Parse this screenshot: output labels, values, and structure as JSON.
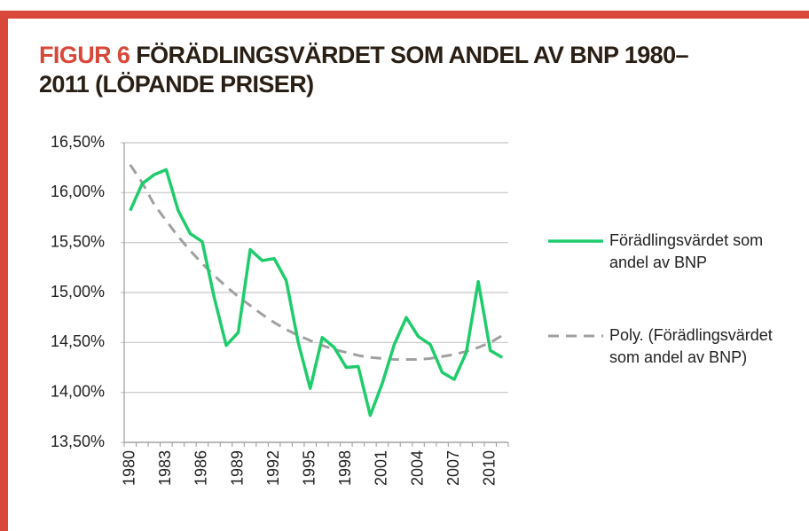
{
  "chart_data": {
    "type": "line",
    "figure_label": "FIGUR 6",
    "title": "FÖRÄDLINGSVÄRDET SOM ANDEL AV BNP 1980–2011 (LÖPANDE PRISER)",
    "categories": [
      "1980",
      null,
      null,
      "1983",
      null,
      null,
      "1986",
      null,
      null,
      "1989",
      null,
      null,
      "1992",
      null,
      null,
      "1995",
      null,
      null,
      "1998",
      null,
      null,
      "2001",
      null,
      null,
      "2004",
      null,
      null,
      "2007",
      null,
      null,
      "2010",
      null
    ],
    "series": [
      {
        "name": "Förädlingsvärdet som andel av BNP",
        "color": "#1fcc6c",
        "dashed": false,
        "values": [
          15.82,
          16.09,
          16.18,
          16.23,
          15.82,
          15.59,
          15.51,
          14.95,
          14.47,
          14.6,
          15.43,
          15.32,
          15.34,
          15.12,
          14.5,
          14.04,
          14.55,
          14.45,
          14.25,
          14.26,
          13.77,
          14.09,
          14.48,
          14.75,
          14.56,
          14.48,
          14.2,
          14.13,
          14.4,
          15.11,
          14.42,
          14.35
        ]
      },
      {
        "name": "Poly. (Förädlingsvärdet som andel av BNP)",
        "color": "#a0a0a0",
        "dashed": true,
        "values": [
          16.28,
          16.1,
          15.88,
          15.72,
          15.56,
          15.42,
          15.29,
          15.17,
          15.06,
          14.96,
          14.87,
          14.78,
          14.7,
          14.63,
          14.57,
          14.52,
          14.47,
          14.43,
          14.4,
          14.37,
          14.35,
          14.34,
          14.33,
          14.33,
          14.33,
          14.34,
          14.36,
          14.38,
          14.41,
          14.45,
          14.5,
          14.57
        ]
      }
    ],
    "ylim": [
      13.5,
      16.5
    ],
    "yticks": [
      {
        "value": 13.5,
        "label": "13,50%"
      },
      {
        "value": 14.0,
        "label": "14,00%"
      },
      {
        "value": 14.5,
        "label": "14,50%"
      },
      {
        "value": 15.0,
        "label": "15,00%"
      },
      {
        "value": 15.5,
        "label": "15,50%"
      },
      {
        "value": 16.0,
        "label": "16,00%"
      },
      {
        "value": 16.5,
        "label": "16,50%"
      }
    ],
    "grid": true
  }
}
